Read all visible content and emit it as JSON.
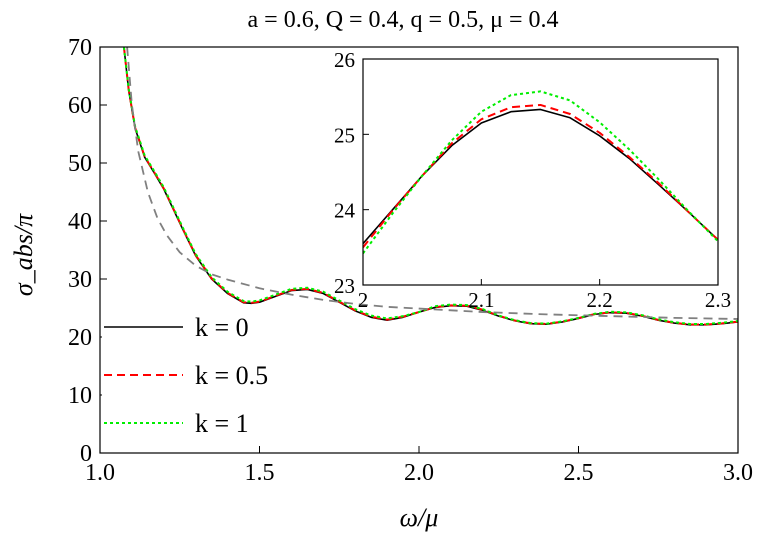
{
  "title": "a = 0.6, Q = 0.4, q = 0.5, μ = 0.4",
  "main_chart": {
    "xlabel": "ω/μ",
    "ylabel": "σ_abs/π",
    "xlim": [
      1.0,
      3.0
    ],
    "ylim": [
      0,
      70
    ],
    "x_ticks": [
      "1.0",
      "1.5",
      "2.0",
      "2.5",
      "3.0"
    ],
    "y_ticks": [
      "0",
      "10",
      "20",
      "30",
      "40",
      "50",
      "60",
      "70"
    ]
  },
  "inset": {
    "xlim": [
      2.0,
      2.3
    ],
    "ylim": [
      23,
      26
    ],
    "x_ticks": [
      "2",
      "2.1",
      "2.2",
      "2.3"
    ],
    "y_ticks": [
      "23",
      "24",
      "25",
      "26"
    ]
  },
  "legend": {
    "placement": "lower-left",
    "entries": [
      {
        "label": "k = 0",
        "color": "#000000",
        "dash": "solid"
      },
      {
        "label": "k = 0.5",
        "color": "#ff0000",
        "dash": "dashed"
      },
      {
        "label": "k = 1",
        "color": "#00ee00",
        "dash": "dotted"
      }
    ]
  },
  "chart_data": [
    {
      "type": "line",
      "xlabel": "ω/μ",
      "ylabel": "σ_abs/π",
      "xlim": [
        1.0,
        3.0
      ],
      "ylim": [
        0,
        70
      ],
      "series": [
        {
          "name": "k = 0",
          "color": "#000000",
          "dash": "solid",
          "x": [
            1.075,
            1.09,
            1.11,
            1.14,
            1.17,
            1.2,
            1.23,
            1.26,
            1.3,
            1.35,
            1.4,
            1.45,
            1.475,
            1.5,
            1.55,
            1.6,
            1.65,
            1.7,
            1.75,
            1.8,
            1.85,
            1.9,
            1.95,
            2.0,
            2.05,
            2.1,
            2.15,
            2.2,
            2.25,
            2.3,
            2.35,
            2.4,
            2.45,
            2.5,
            2.55,
            2.6,
            2.65,
            2.7,
            2.75,
            2.8,
            2.85,
            2.9,
            2.95,
            3.0
          ],
          "y": [
            70.0,
            62.5,
            56.0,
            51.0,
            48.3,
            45.5,
            42.0,
            38.5,
            34.0,
            30.0,
            27.5,
            25.9,
            25.8,
            26.0,
            27.0,
            28.0,
            28.2,
            27.5,
            26.0,
            24.5,
            23.4,
            22.9,
            23.4,
            24.3,
            25.1,
            25.4,
            25.3,
            24.6,
            23.6,
            22.8,
            22.3,
            22.2,
            22.6,
            23.2,
            23.9,
            24.2,
            24.1,
            23.6,
            22.9,
            22.4,
            22.1,
            22.1,
            22.3,
            22.6
          ]
        },
        {
          "name": "k = 0.5",
          "color": "#ff0000",
          "dash": "dashed",
          "x": [
            1.075,
            1.09,
            1.11,
            1.14,
            1.17,
            1.2,
            1.23,
            1.26,
            1.3,
            1.35,
            1.4,
            1.45,
            1.475,
            1.5,
            1.55,
            1.6,
            1.65,
            1.7,
            1.75,
            1.8,
            1.85,
            1.9,
            1.95,
            2.0,
            2.05,
            2.1,
            2.15,
            2.2,
            2.25,
            2.3,
            2.35,
            2.4,
            2.45,
            2.5,
            2.55,
            2.6,
            2.65,
            2.7,
            2.75,
            2.8,
            2.85,
            2.9,
            2.95,
            3.0
          ],
          "y": [
            70.0,
            62.6,
            56.1,
            51.1,
            48.4,
            45.6,
            42.1,
            38.6,
            34.1,
            30.1,
            27.6,
            26.0,
            25.9,
            26.1,
            27.1,
            28.1,
            28.3,
            27.6,
            26.1,
            24.6,
            23.5,
            23.0,
            23.5,
            24.3,
            25.15,
            25.45,
            25.4,
            24.7,
            23.65,
            22.85,
            22.35,
            22.25,
            22.65,
            23.25,
            23.95,
            24.25,
            24.15,
            23.65,
            22.95,
            22.45,
            22.15,
            22.15,
            22.35,
            22.65
          ]
        },
        {
          "name": "k = 1",
          "color": "#00ee00",
          "dash": "dotted",
          "x": [
            1.075,
            1.09,
            1.11,
            1.14,
            1.17,
            1.2,
            1.23,
            1.26,
            1.3,
            1.35,
            1.4,
            1.45,
            1.475,
            1.5,
            1.55,
            1.6,
            1.65,
            1.7,
            1.75,
            1.8,
            1.85,
            1.9,
            1.95,
            2.0,
            2.05,
            2.1,
            2.15,
            2.2,
            2.25,
            2.3,
            2.35,
            2.4,
            2.45,
            2.5,
            2.55,
            2.6,
            2.65,
            2.7,
            2.75,
            2.8,
            2.85,
            2.9,
            2.95,
            3.0
          ],
          "y": [
            70.0,
            62.8,
            56.3,
            51.3,
            48.6,
            45.8,
            42.3,
            38.8,
            34.3,
            30.3,
            27.8,
            26.2,
            26.1,
            26.3,
            27.3,
            28.3,
            28.5,
            27.8,
            26.3,
            24.8,
            23.7,
            23.2,
            23.6,
            24.3,
            25.3,
            25.6,
            25.5,
            24.8,
            23.7,
            22.9,
            22.4,
            22.3,
            22.7,
            23.3,
            24.0,
            24.35,
            24.25,
            23.75,
            23.05,
            22.55,
            22.25,
            22.25,
            22.45,
            22.75
          ]
        },
        {
          "name": "",
          "color": "#808080",
          "dash": "long-dashed",
          "x": [
            1.085,
            1.1,
            1.12,
            1.15,
            1.18,
            1.21,
            1.25,
            1.3,
            1.35,
            1.4,
            1.5,
            1.6,
            1.7,
            1.8,
            1.9,
            2.0,
            2.2,
            2.4,
            2.6,
            2.8,
            3.0
          ],
          "y": [
            70.0,
            60.0,
            52.0,
            45.0,
            40.5,
            37.5,
            34.6,
            32.3,
            30.8,
            29.9,
            28.4,
            27.3,
            26.4,
            25.7,
            25.2,
            24.9,
            24.3,
            23.9,
            23.6,
            23.3,
            23.1
          ]
        }
      ]
    },
    {
      "type": "line",
      "xlim": [
        2.0,
        2.3
      ],
      "ylim": [
        23,
        26
      ],
      "series": [
        {
          "name": "k = 0",
          "color": "#000000",
          "dash": "solid",
          "x": [
            2.0,
            2.025,
            2.05,
            2.075,
            2.1,
            2.125,
            2.15,
            2.175,
            2.2,
            2.225,
            2.25,
            2.275,
            2.3
          ],
          "y": [
            23.55,
            24.0,
            24.45,
            24.85,
            25.15,
            25.3,
            25.33,
            25.22,
            24.98,
            24.68,
            24.33,
            23.97,
            23.6
          ]
        },
        {
          "name": "k = 0.5",
          "color": "#ff0000",
          "dash": "dashed",
          "x": [
            2.0,
            2.025,
            2.05,
            2.075,
            2.1,
            2.125,
            2.15,
            2.175,
            2.2,
            2.225,
            2.25,
            2.275,
            2.3
          ],
          "y": [
            23.5,
            23.99,
            24.45,
            24.88,
            25.2,
            25.36,
            25.39,
            25.27,
            25.02,
            24.7,
            24.35,
            23.97,
            23.6
          ]
        },
        {
          "name": "k = 1",
          "color": "#00ee00",
          "dash": "dotted",
          "x": [
            2.0,
            2.025,
            2.05,
            2.075,
            2.1,
            2.125,
            2.15,
            2.175,
            2.2,
            2.225,
            2.25,
            2.275,
            2.3
          ],
          "y": [
            23.42,
            23.95,
            24.45,
            24.92,
            25.3,
            25.52,
            25.57,
            25.45,
            25.16,
            24.8,
            24.4,
            23.98,
            23.58
          ]
        }
      ]
    }
  ]
}
